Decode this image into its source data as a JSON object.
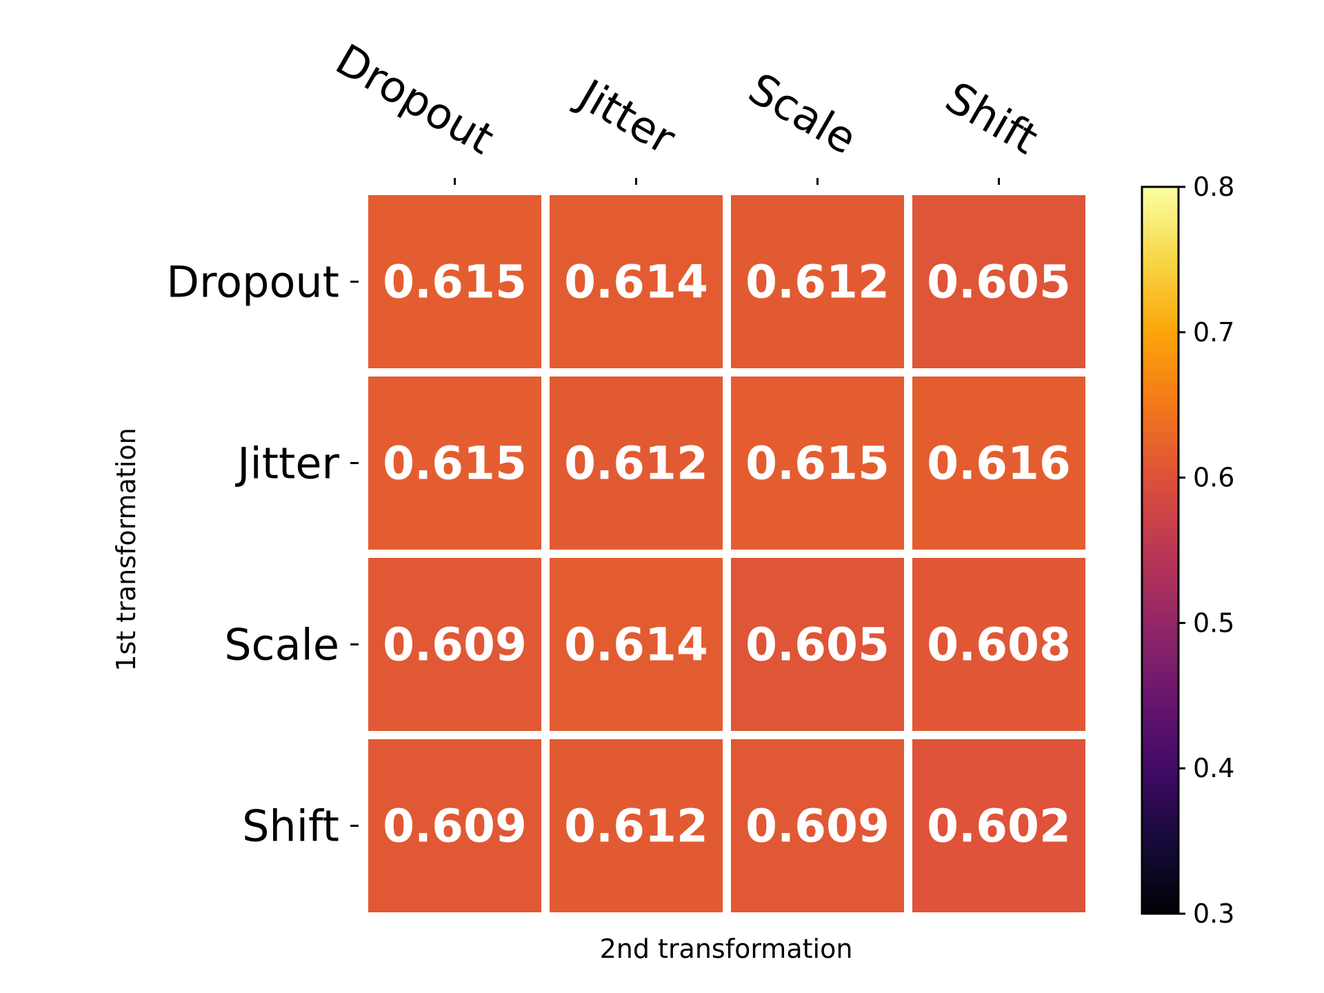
{
  "chart_data": {
    "type": "heatmap",
    "title": "",
    "x_categories": [
      "Dropout",
      "Jitter",
      "Scale",
      "Shift"
    ],
    "y_categories": [
      "Dropout",
      "Jitter",
      "Scale",
      "Shift"
    ],
    "xlabel": "2nd transformation",
    "ylabel": "1st transformation",
    "values": [
      [
        0.615,
        0.614,
        0.612,
        0.605
      ],
      [
        0.615,
        0.612,
        0.615,
        0.616
      ],
      [
        0.609,
        0.614,
        0.605,
        0.608
      ],
      [
        0.609,
        0.612,
        0.609,
        0.602
      ]
    ],
    "value_labels": [
      [
        "0.615",
        "0.614",
        "0.612",
        "0.605"
      ],
      [
        "0.615",
        "0.612",
        "0.615",
        "0.616"
      ],
      [
        "0.609",
        "0.614",
        "0.605",
        "0.608"
      ],
      [
        "0.609",
        "0.612",
        "0.609",
        "0.602"
      ]
    ],
    "colormap": "inferno",
    "colorbar": {
      "range": [
        0.3,
        0.8
      ],
      "ticks": [
        0.3,
        0.4,
        0.5,
        0.6,
        0.7,
        0.8
      ],
      "tick_labels": [
        "0.3",
        "0.4",
        "0.5",
        "0.6",
        "0.7",
        "0.8"
      ],
      "placement": "right"
    },
    "x_tick_position": "top",
    "grid": false
  },
  "colors": {
    "cell_text": "#ffffff",
    "cell_gap": "#ffffff",
    "axis": "#000000"
  }
}
